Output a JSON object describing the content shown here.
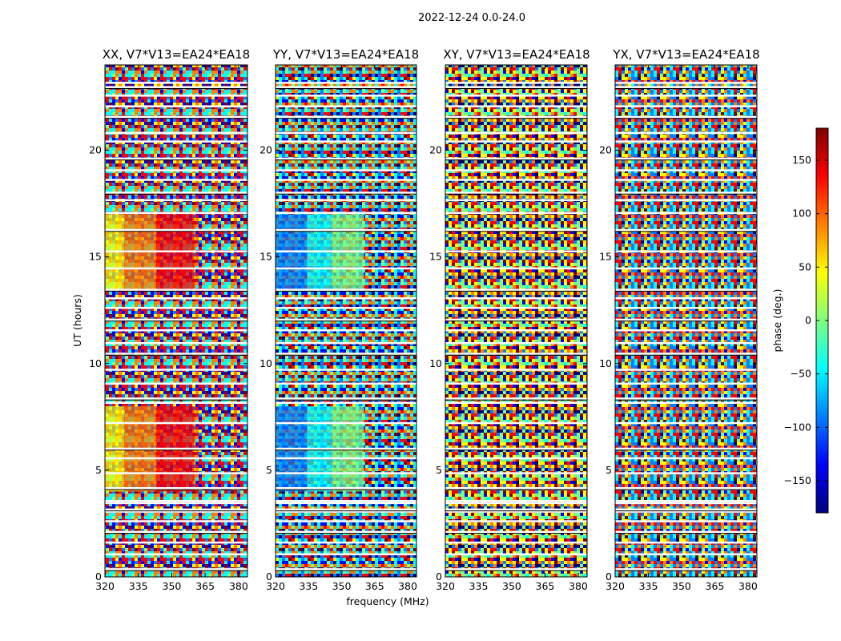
{
  "figure": {
    "title": "2022-12-24 0.0-24.0",
    "xlabel": "frequency (MHz)",
    "ylabel": "UT (hours)",
    "colorbar_label": "phase (deg.)",
    "colormap": [
      "#00007f",
      "#0000ff",
      "#007fff",
      "#00ffff",
      "#7fff7f",
      "#ffff00",
      "#ff7f00",
      "#ff0000",
      "#7f0000"
    ]
  },
  "chart_data": [
    {
      "type": "heatmap",
      "title": "XX, V7*V13=EA24*EA18",
      "xlim": [
        320,
        384
      ],
      "ylim": [
        0,
        24
      ],
      "xticks": [
        320,
        335,
        350,
        365,
        380
      ],
      "yticks": [
        0,
        5,
        10,
        15,
        20
      ],
      "value_range": [
        -180,
        180
      ],
      "coherent_regions": [
        {
          "t": [
            4.0,
            8.0
          ],
          "f": [
            320,
            360
          ],
          "phase": [
            40,
            160
          ]
        },
        {
          "t": [
            13.5,
            17.0
          ],
          "f": [
            320,
            360
          ],
          "phase": [
            40,
            160
          ]
        }
      ]
    },
    {
      "type": "heatmap",
      "title": "YY, V7*V13=EA24*EA18",
      "xlim": [
        320,
        384
      ],
      "ylim": [
        0,
        24
      ],
      "xticks": [
        320,
        335,
        350,
        365,
        380
      ],
      "yticks": [
        0,
        5,
        10,
        15,
        20
      ],
      "value_range": [
        -180,
        180
      ],
      "coherent_regions": [
        {
          "t": [
            4.0,
            8.0
          ],
          "f": [
            320,
            360
          ],
          "phase": [
            -110,
            20
          ]
        },
        {
          "t": [
            13.5,
            17.0
          ],
          "f": [
            320,
            360
          ],
          "phase": [
            -110,
            20
          ]
        }
      ]
    },
    {
      "type": "heatmap",
      "title": "XY, V7*V13=EA24*EA18",
      "xlim": [
        320,
        384
      ],
      "ylim": [
        0,
        24
      ],
      "xticks": [
        320,
        335,
        350,
        365,
        380
      ],
      "yticks": [
        0,
        5,
        10,
        15,
        20
      ],
      "value_range": [
        -180,
        180
      ],
      "coherent_regions": []
    },
    {
      "type": "heatmap",
      "title": "YX, V7*V13=EA24*EA18",
      "xlim": [
        320,
        384
      ],
      "ylim": [
        0,
        24
      ],
      "xticks": [
        320,
        335,
        350,
        365,
        380
      ],
      "yticks": [
        0,
        5,
        10,
        15,
        20
      ],
      "value_range": [
        -180,
        180
      ],
      "coherent_regions": []
    },
    {
      "type": "colorbar",
      "range": [
        -180,
        180
      ],
      "ticks": [
        -150,
        -100,
        -50,
        0,
        50,
        100,
        150
      ],
      "tick_labels": [
        "−150",
        "−100",
        "−50",
        "0",
        "50",
        "100",
        "150"
      ],
      "label": "phase (deg.)"
    }
  ],
  "flagged_hours": [
    0.35,
    1.05,
    1.6,
    2.1,
    2.6,
    3.05,
    3.15,
    3.45,
    3.55,
    4.15,
    4.85,
    5.55,
    6.0,
    7.2,
    8.15,
    8.35,
    9.05,
    9.7,
    10.45,
    10.95,
    11.55,
    12.05,
    12.6,
    13.05,
    13.45,
    14.45,
    15.25,
    16.25,
    17.05,
    17.65,
    18.0,
    18.6,
    19.05,
    19.6,
    20.4,
    20.8,
    21.55,
    22.05,
    22.55,
    22.95,
    23.15
  ]
}
